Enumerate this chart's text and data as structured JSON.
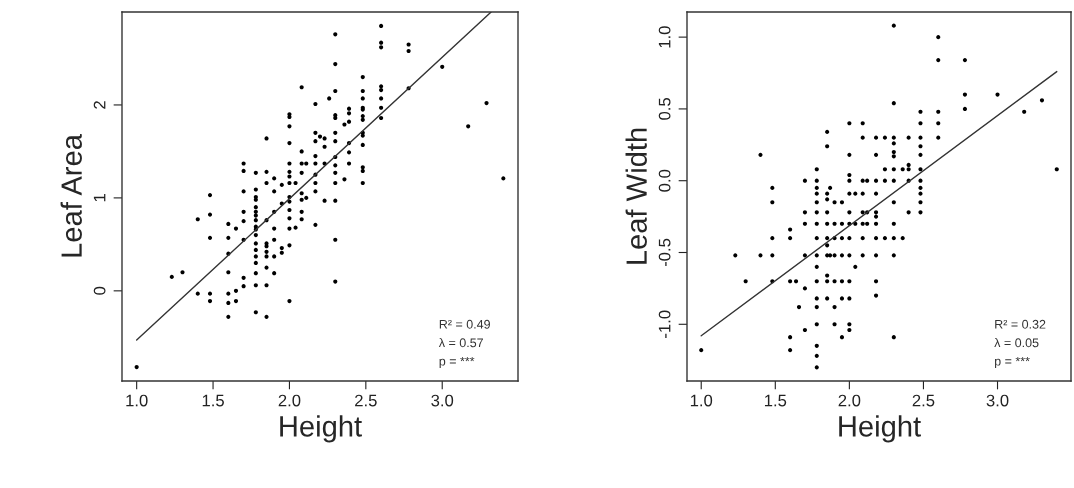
{
  "chart_data": [
    {
      "type": "scatter",
      "xlabel": "Height",
      "ylabel": "Leaf Area",
      "xlim": [
        0.904,
        3.496
      ],
      "ylim": [
        -0.97,
        3.0
      ],
      "xticks": [
        {
          "value": 1,
          "label": "1.0"
        },
        {
          "value": 1.5,
          "label": "1.5"
        },
        {
          "value": 2,
          "label": "2.0"
        },
        {
          "value": 2.5,
          "label": "2.5"
        },
        {
          "value": 3,
          "label": "3.0"
        }
      ],
      "yticks": [
        0,
        1,
        2
      ],
      "grid": false,
      "legend": false,
      "annotations": [
        "R² = 0.49",
        "λ = 0.57",
        "p = ***"
      ],
      "series": [
        {
          "marker": "circle",
          "color": "#000000",
          "x": [
            1.0,
            1.23,
            1.3,
            1.4,
            1.4,
            1.48,
            1.48,
            1.48,
            1.48,
            1.48,
            1.6,
            1.6,
            1.6,
            1.6,
            1.6,
            1.6,
            1.6,
            1.65,
            1.65,
            1.65,
            1.7,
            1.7,
            1.7,
            1.7,
            1.7,
            1.7,
            1.7,
            1.7,
            1.78,
            1.78,
            1.78,
            1.78,
            1.78,
            1.78,
            1.78,
            1.78,
            1.78,
            1.78,
            1.78,
            1.78,
            1.78,
            1.78,
            1.78,
            1.78,
            1.78,
            1.78,
            1.85,
            1.85,
            1.85,
            1.85,
            1.85,
            1.85,
            1.85,
            1.85,
            1.85,
            1.85,
            1.85,
            1.9,
            1.9,
            1.9,
            1.9,
            1.9,
            1.9,
            1.9,
            1.95,
            1.95,
            1.95,
            1.95,
            2.0,
            2.0,
            2.0,
            2.0,
            2.0,
            2.0,
            2.0,
            2.0,
            2.0,
            2.0,
            2.0,
            2.0,
            2.0,
            2.0,
            2.0,
            2.04,
            2.04,
            2.08,
            2.08,
            2.08,
            2.08,
            2.08,
            2.08,
            2.08,
            2.08,
            2.11,
            2.11,
            2.17,
            2.17,
            2.17,
            2.17,
            2.17,
            2.17,
            2.17,
            2.17,
            2.17,
            2.2,
            2.23,
            2.23,
            2.23,
            2.23,
            2.26,
            2.3,
            2.3,
            2.3,
            2.3,
            2.3,
            2.3,
            2.3,
            2.3,
            2.3,
            2.3,
            2.3,
            2.3,
            2.3,
            2.3,
            2.36,
            2.36,
            2.39,
            2.39,
            2.39,
            2.39,
            2.39,
            2.39,
            2.48,
            2.48,
            2.48,
            2.48,
            2.48,
            2.48,
            2.48,
            2.48,
            2.48,
            2.48,
            2.48,
            2.48,
            2.48,
            2.6,
            2.6,
            2.6,
            2.6,
            2.6,
            2.6,
            2.6,
            2.6,
            2.78,
            2.78,
            2.78,
            3.0,
            3.17,
            3.29,
            3.4
          ],
          "values": [
            -0.82,
            0.15,
            0.2,
            0.77,
            -0.03,
            1.03,
            0.82,
            0.57,
            -0.03,
            -0.11,
            0.72,
            0.57,
            0.4,
            0.2,
            -0.03,
            -0.13,
            -0.28,
            0.67,
            0.0,
            -0.11,
            1.37,
            1.29,
            1.07,
            0.85,
            0.75,
            0.55,
            0.14,
            0.05,
            1.27,
            1.09,
            1.01,
            0.98,
            0.9,
            0.85,
            0.81,
            0.76,
            0.69,
            0.66,
            0.6,
            0.51,
            0.44,
            0.37,
            0.3,
            0.19,
            0.06,
            -0.23,
            1.64,
            1.28,
            1.16,
            0.76,
            0.51,
            0.48,
            0.42,
            0.37,
            0.25,
            0.06,
            -0.28,
            1.21,
            1.07,
            0.85,
            0.67,
            0.55,
            0.37,
            0.19,
            1.14,
            0.94,
            0.46,
            0.41,
            1.9,
            1.87,
            1.77,
            1.59,
            1.37,
            1.28,
            1.23,
            1.16,
            1.01,
            0.96,
            0.87,
            0.78,
            0.67,
            0.49,
            -0.11,
            1.16,
            0.68,
            2.19,
            1.5,
            1.37,
            1.27,
            1.05,
            0.98,
            0.85,
            0.77,
            1.37,
            1.0,
            2.01,
            1.7,
            1.61,
            1.45,
            1.37,
            1.25,
            1.16,
            1.07,
            0.71,
            1.66,
            1.64,
            1.55,
            1.37,
            0.97,
            2.07,
            2.76,
            2.44,
            2.15,
            1.89,
            1.86,
            1.7,
            1.61,
            1.44,
            1.35,
            1.27,
            1.16,
            0.97,
            0.55,
            0.1,
            1.79,
            1.2,
            1.96,
            1.91,
            1.82,
            1.59,
            1.49,
            1.37,
            2.3,
            2.15,
            2.07,
            1.97,
            1.95,
            1.88,
            1.84,
            1.7,
            1.67,
            1.57,
            1.33,
            1.29,
            1.16,
            2.85,
            2.67,
            2.62,
            2.2,
            2.16,
            2.07,
            1.97,
            1.86,
            2.65,
            2.58,
            2.18,
            2.41,
            1.77,
            2.02,
            1.21
          ]
        },
        {
          "type": "line",
          "marker": "none",
          "color": "#333333",
          "x": [
            1.0,
            3.32
          ],
          "values": [
            -0.53,
            3.0
          ]
        }
      ]
    },
    {
      "type": "scatter",
      "xlabel": "Height",
      "ylabel": "Leaf Width",
      "xlim": [
        0.904,
        3.496
      ],
      "ylim": [
        -1.395,
        1.175
      ],
      "xticks": [
        {
          "value": 1,
          "label": "1.0"
        },
        {
          "value": 1.5,
          "label": "1.5"
        },
        {
          "value": 2,
          "label": "2.0"
        },
        {
          "value": 2.5,
          "label": "2.5"
        },
        {
          "value": 3,
          "label": "3.0"
        }
      ],
      "yticks": [
        {
          "value": -1.0,
          "label": "-1.0"
        },
        {
          "value": -0.5,
          "label": "-0.5"
        },
        {
          "value": 0.0,
          "label": "0.0"
        },
        {
          "value": 0.5,
          "label": "0.5"
        },
        {
          "value": 1.0,
          "label": "1.0"
        }
      ],
      "grid": false,
      "legend": false,
      "annotations": [
        "R² = 0.32",
        "λ = 0.05",
        "p = ***"
      ],
      "series": [
        {
          "marker": "circle",
          "color": "#000000",
          "x": [
            1.0,
            1.23,
            1.3,
            1.4,
            1.4,
            1.48,
            1.48,
            1.48,
            1.48,
            1.48,
            1.6,
            1.6,
            1.6,
            1.6,
            1.6,
            1.64,
            1.66,
            1.7,
            1.7,
            1.7,
            1.7,
            1.7,
            1.7,
            1.78,
            1.78,
            1.78,
            1.78,
            1.78,
            1.78,
            1.78,
            1.78,
            1.78,
            1.78,
            1.78,
            1.78,
            1.78,
            1.78,
            1.78,
            1.78,
            1.78,
            1.85,
            1.85,
            1.85,
            1.85,
            1.85,
            1.85,
            1.85,
            1.85,
            1.85,
            1.85,
            1.85,
            1.85,
            1.87,
            1.87,
            1.9,
            1.9,
            1.9,
            1.9,
            1.9,
            1.9,
            1.9,
            1.95,
            1.95,
            1.95,
            1.95,
            1.95,
            1.95,
            1.95,
            2.0,
            2.0,
            2.0,
            2.0,
            2.0,
            2.0,
            2.0,
            2.0,
            2.0,
            2.0,
            2.0,
            2.0,
            2.0,
            2.04,
            2.04,
            2.04,
            2.09,
            2.09,
            2.09,
            2.09,
            2.09,
            2.09,
            2.09,
            2.09,
            2.12,
            2.12,
            2.12,
            2.18,
            2.18,
            2.18,
            2.18,
            2.18,
            2.18,
            2.18,
            2.18,
            2.18,
            2.18,
            2.18,
            2.24,
            2.24,
            2.24,
            2.24,
            2.3,
            2.3,
            2.3,
            2.3,
            2.3,
            2.3,
            2.3,
            2.3,
            2.3,
            2.3,
            2.3,
            2.3,
            2.3,
            2.36,
            2.36,
            2.4,
            2.4,
            2.4,
            2.4,
            2.4,
            2.48,
            2.48,
            2.48,
            2.48,
            2.48,
            2.48,
            2.48,
            2.48,
            2.48,
            2.48,
            2.48,
            2.6,
            2.6,
            2.6,
            2.6,
            2.6,
            2.78,
            2.78,
            2.78,
            3.0,
            3.18,
            3.3,
            3.4
          ],
          "values": [
            -1.18,
            -0.52,
            -0.7,
            0.18,
            -0.52,
            -0.05,
            -0.15,
            -0.4,
            -0.52,
            -0.7,
            -0.34,
            -0.4,
            -0.7,
            -1.09,
            -1.18,
            -0.7,
            -0.88,
            0.0,
            -0.22,
            -0.3,
            -0.52,
            -0.75,
            -1.04,
            0.08,
            0.0,
            -0.05,
            -0.09,
            -0.15,
            -0.22,
            -0.3,
            -0.4,
            -0.52,
            -0.6,
            -0.7,
            -0.82,
            -0.88,
            -1.0,
            -1.15,
            -1.22,
            -1.3,
            0.34,
            0.24,
            -0.09,
            -0.13,
            -0.22,
            -0.3,
            -0.4,
            -0.45,
            -0.52,
            -0.66,
            -0.7,
            -0.82,
            -0.05,
            -0.52,
            -0.15,
            -0.3,
            -0.4,
            -0.52,
            -0.7,
            -0.88,
            -1.0,
            -0.15,
            -0.3,
            -0.4,
            -0.52,
            -0.7,
            -0.82,
            -1.09,
            0.4,
            0.18,
            0.04,
            0.0,
            -0.09,
            -0.22,
            -0.3,
            -0.4,
            -0.52,
            -0.7,
            -0.82,
            -1.0,
            -1.04,
            -0.09,
            -0.3,
            -0.6,
            0.4,
            0.3,
            0.0,
            -0.09,
            -0.22,
            -0.3,
            -0.4,
            -0.52,
            0.0,
            -0.22,
            -0.3,
            0.3,
            0.18,
            0.0,
            -0.09,
            -0.22,
            -0.25,
            -0.3,
            -0.4,
            -0.52,
            -0.7,
            -0.8,
            0.3,
            0.08,
            0.0,
            -0.4,
            1.08,
            0.54,
            0.3,
            0.26,
            0.2,
            0.17,
            0.08,
            0.0,
            -0.15,
            -0.3,
            -0.4,
            -0.52,
            -1.09,
            0.08,
            -0.4,
            0.3,
            0.11,
            0.08,
            0.0,
            -0.22,
            0.48,
            0.4,
            0.3,
            0.24,
            0.18,
            0.08,
            0.0,
            -0.05,
            -0.09,
            -0.15,
            -0.22,
            1.0,
            0.84,
            0.48,
            0.4,
            0.3,
            0.84,
            0.6,
            0.5,
            0.6,
            0.48,
            0.56,
            0.08
          ]
        },
        {
          "type": "line",
          "marker": "none",
          "color": "#333333",
          "x": [
            1.0,
            3.4
          ],
          "values": [
            -1.08,
            0.76
          ]
        }
      ]
    }
  ]
}
